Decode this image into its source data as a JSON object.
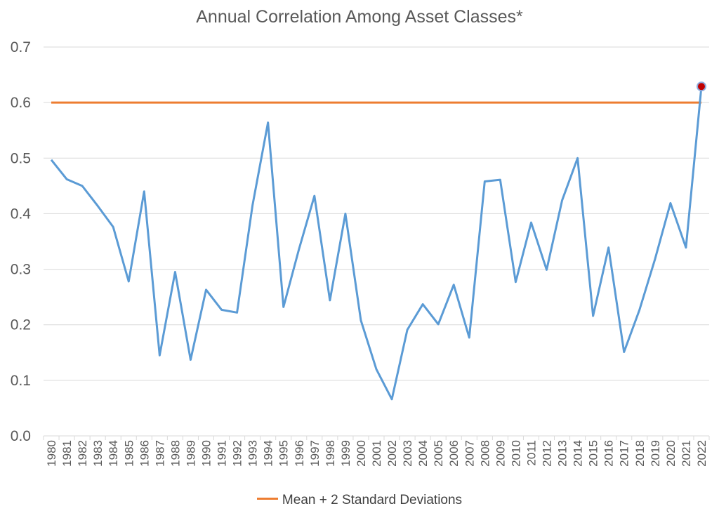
{
  "chart_data": {
    "type": "line",
    "title": "Annual Correlation Among Asset Classes*",
    "xlabel": "",
    "ylabel": "",
    "ylim": [
      0,
      0.7
    ],
    "yticks": [
      "0.0",
      "0.1",
      "0.2",
      "0.3",
      "0.4",
      "0.5",
      "0.6",
      "0.7"
    ],
    "grid": true,
    "legend_position": "bottom",
    "categories": [
      "1980",
      "1981",
      "1982",
      "1983",
      "1984",
      "1985",
      "1986",
      "1987",
      "1988",
      "1989",
      "1990",
      "1991",
      "1992",
      "1993",
      "1994",
      "1995",
      "1996",
      "1997",
      "1998",
      "1999",
      "2000",
      "2001",
      "2002",
      "2003",
      "2004",
      "2005",
      "2006",
      "2007",
      "2008",
      "2009",
      "2010",
      "2011",
      "2012",
      "2013",
      "2014",
      "2015",
      "2016",
      "2017",
      "2018",
      "2019",
      "2020",
      "2021",
      "2022"
    ],
    "series": [
      {
        "color": "#5b9bd5",
        "values": [
          0.497,
          0.462,
          0.45,
          0.414,
          0.376,
          0.278,
          0.44,
          0.145,
          0.295,
          0.137,
          0.263,
          0.227,
          0.222,
          0.415,
          0.564,
          0.232,
          0.336,
          0.432,
          0.244,
          0.4,
          0.208,
          0.12,
          0.066,
          0.191,
          0.237,
          0.201,
          0.272,
          0.177,
          0.458,
          0.461,
          0.277,
          0.384,
          0.299,
          0.424,
          0.5,
          0.216,
          0.339,
          0.151,
          0.227,
          0.318,
          0.419,
          0.339,
          0.629
        ],
        "highlight_last": true,
        "highlight_color": "#c00000"
      },
      {
        "name": "Mean + 2 Standard Deviations",
        "color": "#ed7d31",
        "constant": 0.6
      }
    ]
  }
}
